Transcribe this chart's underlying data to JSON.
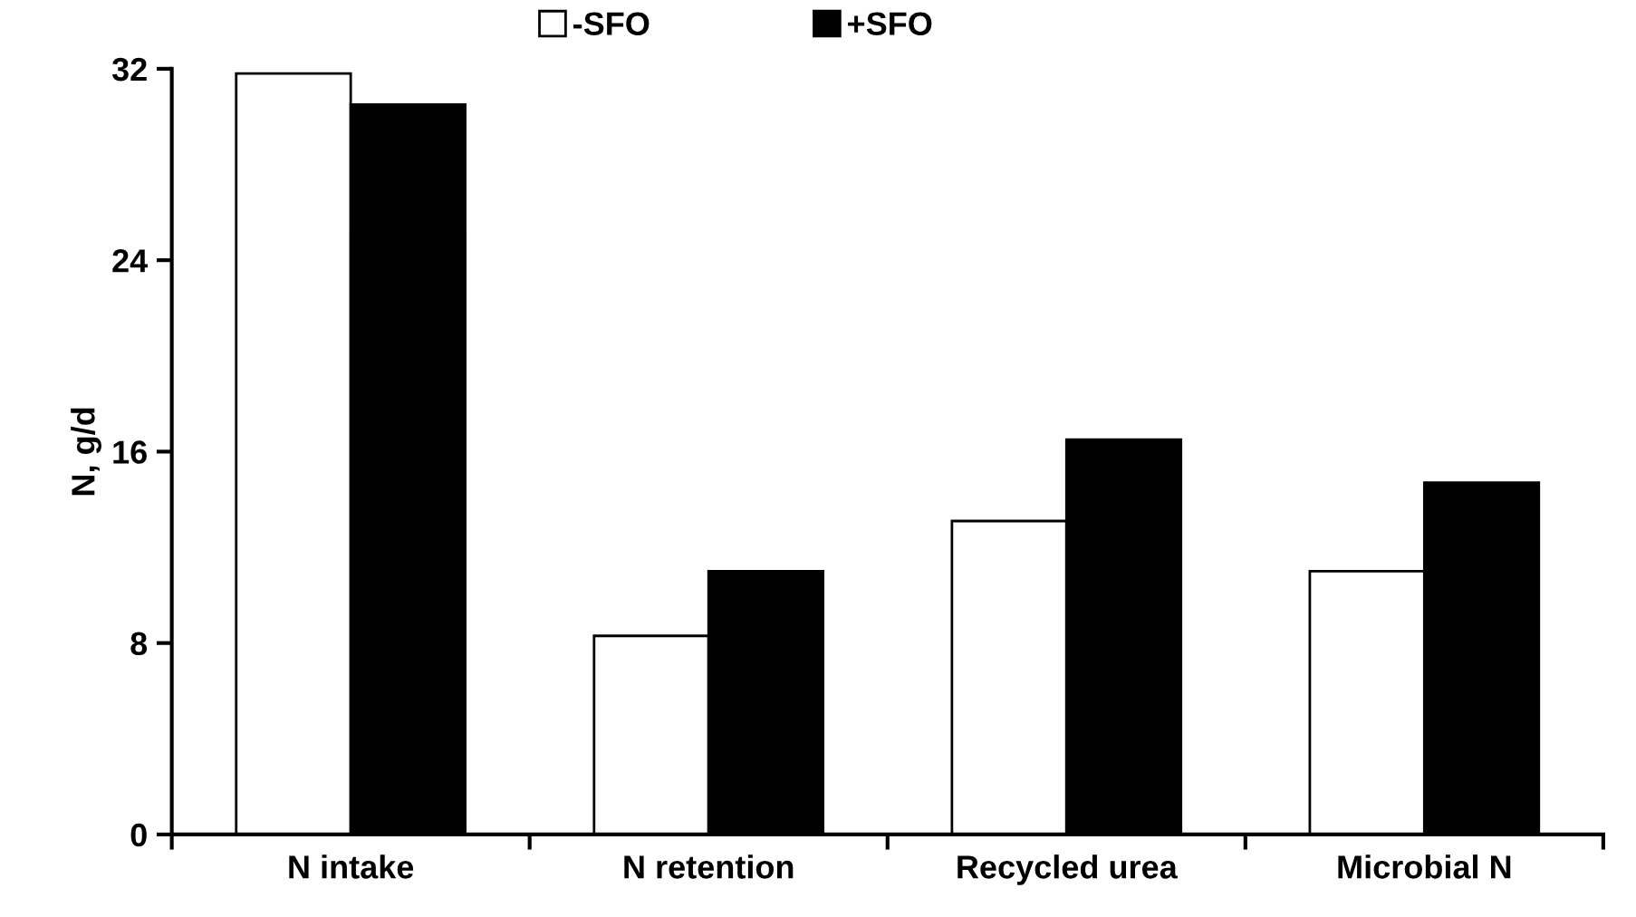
{
  "chart_data": {
    "type": "bar",
    "ylabel": "N, g/d",
    "categories": [
      "N intake",
      "N retention",
      "Recycled urea",
      "Microbial N"
    ],
    "series": [
      {
        "name": "-SFO",
        "color": "#ffffff",
        "values": [
          31.8,
          8.3,
          13.1,
          11.0
        ]
      },
      {
        "name": "+SFO",
        "color": "#000000",
        "values": [
          30.5,
          11.0,
          16.5,
          14.7
        ]
      }
    ],
    "ylim": [
      0,
      32
    ],
    "yticks": [
      0,
      8,
      16,
      24,
      32
    ],
    "grid": false,
    "legend": "top"
  }
}
